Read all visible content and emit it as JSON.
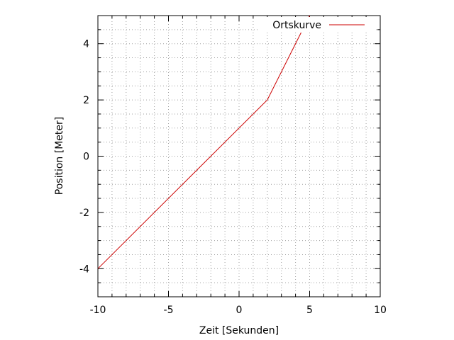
{
  "chart_data": {
    "type": "line",
    "title": "",
    "xlabel": "Zeit [Sekunden]",
    "ylabel": "Position [Meter]",
    "xlim": [
      -10,
      10
    ],
    "ylim": [
      -5,
      5
    ],
    "x_ticks": [
      -10,
      -5,
      0,
      5,
      10
    ],
    "y_ticks": [
      -4,
      -2,
      0,
      2,
      4
    ],
    "x_tick_labels": [
      "-10",
      "-5",
      "0",
      "5",
      "10"
    ],
    "y_tick_labels": [
      "-4",
      "-2",
      "0",
      "2",
      "4"
    ],
    "x_minor_step": 1,
    "y_minor_step": 0.5,
    "grid": true,
    "legend_position": "top-right",
    "series": [
      {
        "name": "Ortskurve",
        "color": "#cc0000",
        "x": [
          -10,
          2,
          5
        ],
        "y": [
          -4,
          2,
          5
        ]
      }
    ]
  }
}
